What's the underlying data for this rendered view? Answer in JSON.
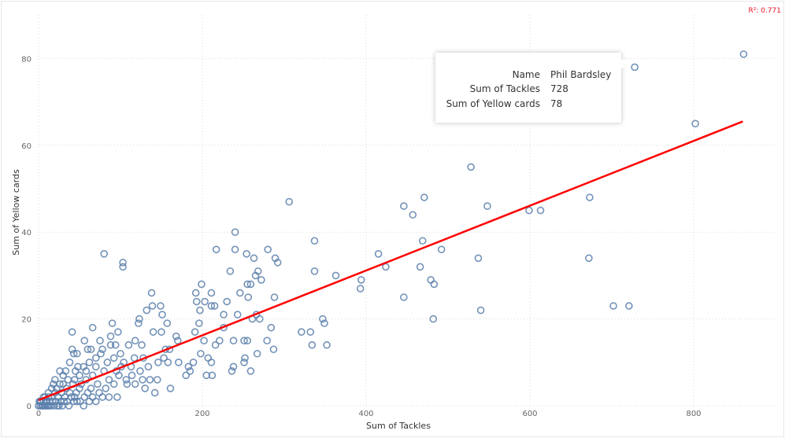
{
  "chart_data": {
    "type": "scatter",
    "xlabel": "Sum of Tackles",
    "ylabel": "Sum of Yellow cards",
    "xlim": [
      0,
      900
    ],
    "ylim": [
      0,
      88
    ],
    "x_ticks": [
      "0",
      "200",
      "400",
      "600",
      "800"
    ],
    "y_ticks": [
      "0",
      "20",
      "40",
      "60",
      "80"
    ],
    "grid": true,
    "marker": "hollow-circle",
    "point_color": "#5b7fab",
    "trendline": {
      "color": "#ff0000",
      "x": [
        0,
        860
      ],
      "y": [
        1.3,
        65.5
      ],
      "r_squared_label": "R²: 0.771"
    },
    "points": [
      [
        861,
        81
      ],
      [
        728,
        78
      ],
      [
        802,
        65
      ],
      [
        673,
        48
      ],
      [
        672,
        34
      ],
      [
        702,
        23
      ],
      [
        721,
        23
      ],
      [
        599,
        45
      ],
      [
        613,
        45
      ],
      [
        548,
        46
      ],
      [
        528,
        55
      ],
      [
        537,
        34
      ],
      [
        540,
        22
      ],
      [
        482,
        20
      ],
      [
        479,
        29
      ],
      [
        483,
        28
      ],
      [
        492,
        36
      ],
      [
        471,
        48
      ],
      [
        469,
        38
      ],
      [
        466,
        32
      ],
      [
        446,
        46
      ],
      [
        457,
        44
      ],
      [
        446,
        25
      ],
      [
        424,
        32
      ],
      [
        415,
        35
      ],
      [
        394,
        29
      ],
      [
        393,
        27
      ],
      [
        363,
        30
      ],
      [
        337,
        38
      ],
      [
        337,
        31
      ],
      [
        306,
        47
      ],
      [
        347,
        20
      ],
      [
        349,
        19
      ],
      [
        321,
        17
      ],
      [
        332,
        17
      ],
      [
        334,
        14
      ],
      [
        352,
        14
      ],
      [
        240,
        40
      ],
      [
        240,
        36
      ],
      [
        217,
        36
      ],
      [
        280,
        36
      ],
      [
        289,
        34
      ],
      [
        292,
        33
      ],
      [
        263,
        34
      ],
      [
        268,
        31
      ],
      [
        265,
        30
      ],
      [
        234,
        31
      ],
      [
        259,
        28
      ],
      [
        255,
        28
      ],
      [
        272,
        29
      ],
      [
        254,
        35
      ],
      [
        246,
        26
      ],
      [
        230,
        24
      ],
      [
        243,
        21
      ],
      [
        256,
        25
      ],
      [
        288,
        25
      ],
      [
        261,
        20
      ],
      [
        270,
        20
      ],
      [
        284,
        18
      ],
      [
        266,
        21
      ],
      [
        226,
        21
      ],
      [
        226,
        18
      ],
      [
        251,
        15
      ],
      [
        255,
        15
      ],
      [
        238,
        15
      ],
      [
        279,
        15
      ],
      [
        287,
        13
      ],
      [
        238,
        9
      ],
      [
        236,
        8
      ],
      [
        259,
        8
      ],
      [
        267,
        12
      ],
      [
        251,
        10
      ],
      [
        252,
        11
      ],
      [
        211,
        10
      ],
      [
        197,
        22
      ],
      [
        193,
        24
      ],
      [
        199,
        28
      ],
      [
        203,
        24
      ],
      [
        211,
        23
      ],
      [
        215,
        23
      ],
      [
        211,
        26
      ],
      [
        192,
        26
      ],
      [
        202,
        15
      ],
      [
        196,
        19
      ],
      [
        191,
        17
      ],
      [
        216,
        14
      ],
      [
        221,
        15
      ],
      [
        207,
        11
      ],
      [
        198,
        12
      ],
      [
        185,
        8
      ],
      [
        189,
        10
      ],
      [
        180,
        7
      ],
      [
        212,
        7
      ],
      [
        205,
        7
      ],
      [
        183,
        9
      ],
      [
        80,
        35
      ],
      [
        103,
        33
      ],
      [
        103,
        32
      ],
      [
        138,
        26
      ],
      [
        139,
        23
      ],
      [
        149,
        23
      ],
      [
        132,
        22
      ],
      [
        151,
        21
      ],
      [
        157,
        19
      ],
      [
        123,
        20
      ],
      [
        122,
        19
      ],
      [
        90,
        19
      ],
      [
        66,
        18
      ],
      [
        41,
        17
      ],
      [
        56,
        15
      ],
      [
        75,
        15
      ],
      [
        64,
        13
      ],
      [
        41,
        13
      ],
      [
        43,
        12
      ],
      [
        97,
        17
      ],
      [
        88,
        16
      ],
      [
        94,
        14
      ],
      [
        110,
        14
      ],
      [
        118,
        15
      ],
      [
        126,
        14
      ],
      [
        140,
        17
      ],
      [
        150,
        17
      ],
      [
        155,
        13
      ],
      [
        160,
        13
      ],
      [
        168,
        16
      ],
      [
        170,
        15
      ],
      [
        146,
        10
      ],
      [
        153,
        11
      ],
      [
        158,
        10
      ],
      [
        171,
        10
      ],
      [
        136,
        6
      ],
      [
        142,
        3
      ],
      [
        161,
        4
      ],
      [
        130,
        4
      ],
      [
        118,
        5
      ],
      [
        113,
        9
      ],
      [
        100,
        12
      ],
      [
        92,
        11
      ],
      [
        84,
        10
      ],
      [
        98,
        7
      ],
      [
        107,
        6
      ],
      [
        76,
        12
      ],
      [
        70,
        11
      ],
      [
        62,
        10
      ],
      [
        55,
        9
      ],
      [
        48,
        9
      ],
      [
        45,
        8
      ],
      [
        38,
        10
      ],
      [
        33,
        8
      ],
      [
        30,
        7
      ],
      [
        58,
        8
      ],
      [
        66,
        7
      ],
      [
        80,
        8
      ],
      [
        86,
        6
      ],
      [
        92,
        5
      ],
      [
        72,
        5
      ],
      [
        64,
        4
      ],
      [
        52,
        5
      ],
      [
        44,
        6
      ],
      [
        36,
        6
      ],
      [
        26,
        5
      ],
      [
        22,
        4
      ],
      [
        18,
        5
      ],
      [
        20,
        3
      ],
      [
        28,
        3
      ],
      [
        34,
        4
      ],
      [
        40,
        2
      ],
      [
        46,
        3
      ],
      [
        56,
        2
      ],
      [
        62,
        1
      ],
      [
        70,
        1
      ],
      [
        78,
        2
      ],
      [
        86,
        2
      ],
      [
        96,
        2
      ],
      [
        108,
        5
      ],
      [
        114,
        7
      ],
      [
        124,
        8
      ],
      [
        128,
        11
      ],
      [
        134,
        9
      ],
      [
        101,
        9
      ],
      [
        95,
        8
      ],
      [
        88,
        14
      ],
      [
        78,
        13
      ],
      [
        58,
        6
      ],
      [
        50,
        4
      ],
      [
        42,
        5
      ],
      [
        38,
        3
      ],
      [
        32,
        2
      ],
      [
        24,
        2
      ],
      [
        16,
        2
      ],
      [
        12,
        3
      ],
      [
        10,
        1
      ],
      [
        14,
        1
      ],
      [
        8,
        2
      ],
      [
        6,
        1
      ],
      [
        4,
        0
      ],
      [
        2,
        0
      ],
      [
        3,
        1
      ],
      [
        5,
        0
      ],
      [
        7,
        0
      ],
      [
        9,
        0
      ],
      [
        11,
        0
      ],
      [
        13,
        0
      ],
      [
        15,
        0
      ],
      [
        17,
        1
      ],
      [
        19,
        0
      ],
      [
        21,
        1
      ],
      [
        23,
        0
      ],
      [
        25,
        0
      ],
      [
        27,
        1
      ],
      [
        29,
        0
      ],
      [
        31,
        1
      ],
      [
        35,
        1
      ],
      [
        37,
        0
      ],
      [
        43,
        1
      ],
      [
        47,
        1
      ],
      [
        51,
        1
      ],
      [
        55,
        0
      ],
      [
        60,
        3
      ],
      [
        66,
        2
      ],
      [
        74,
        3
      ],
      [
        82,
        4
      ],
      [
        104,
        10
      ],
      [
        117,
        11
      ],
      [
        127,
        6
      ],
      [
        145,
        6
      ],
      [
        60,
        13
      ],
      [
        70,
        9
      ],
      [
        50,
        7
      ],
      [
        47,
        12
      ],
      [
        44,
        2
      ],
      [
        20,
        6
      ],
      [
        16,
        4
      ],
      [
        26,
        8
      ],
      [
        30,
        5
      ],
      [
        1,
        1
      ],
      [
        0,
        0
      ],
      [
        2,
        1
      ],
      [
        6,
        2
      ],
      [
        9,
        1
      ],
      [
        12,
        2
      ]
    ]
  },
  "tooltip": {
    "rows": [
      {
        "label": "Name",
        "value": "Phil Bardsley"
      },
      {
        "label": "Sum of Tackles",
        "value": "728"
      },
      {
        "label": "Sum of Yellow cards",
        "value": "78"
      }
    ]
  }
}
